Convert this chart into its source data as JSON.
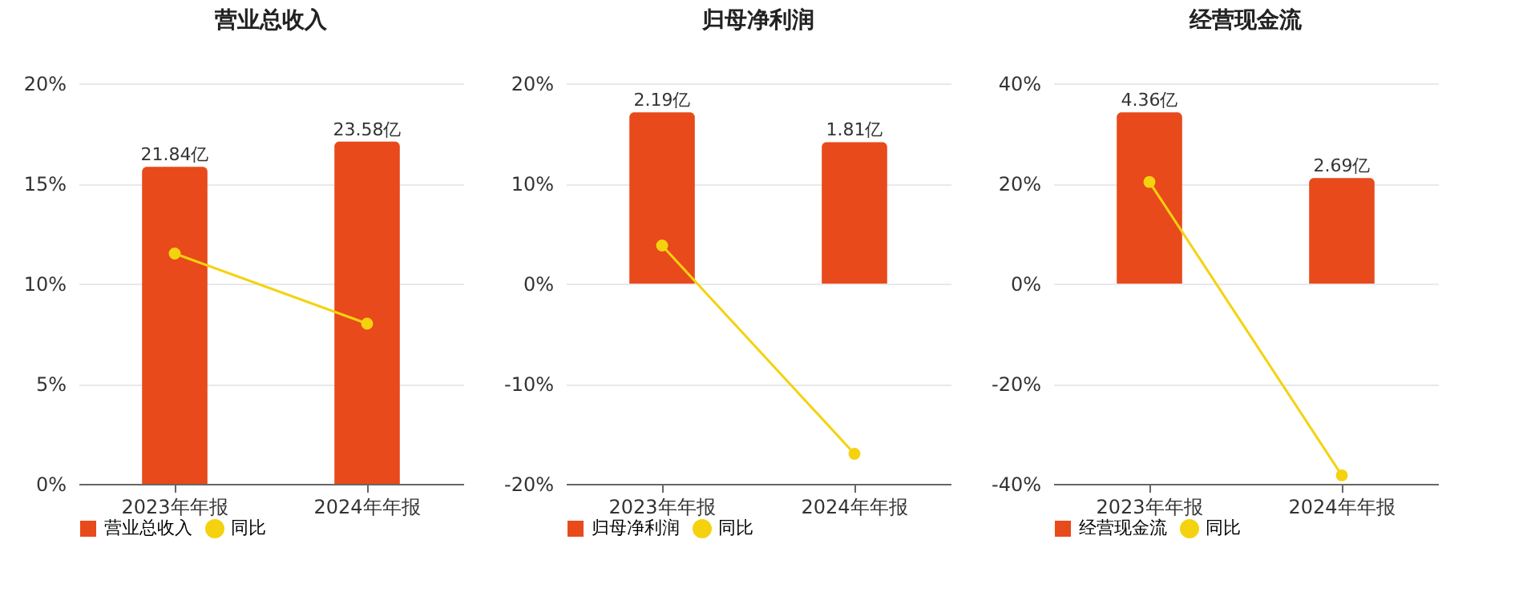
{
  "chart_data": [
    {
      "type": "bar",
      "title": "营业总收入",
      "categories": [
        "2023年年报",
        "2024年年报"
      ],
      "series": [
        {
          "name": "营业总收入",
          "axis": "y2",
          "color": "#e84a1b",
          "values": [
            21.84,
            23.58
          ],
          "value_labels": [
            "21.84亿",
            "23.58亿"
          ]
        },
        {
          "name": "同比",
          "type": "line",
          "color": "#f5d20f",
          "values": [
            11.5,
            8.0
          ]
        }
      ],
      "ylim": [
        0,
        20
      ],
      "yticks": [
        {
          "value": 0,
          "label": "0%"
        },
        {
          "value": 5,
          "label": "5%"
        },
        {
          "value": 10,
          "label": "10%"
        },
        {
          "value": 15,
          "label": "15%"
        },
        {
          "value": 20,
          "label": "20%"
        }
      ],
      "grid": "y",
      "legend": "bottom",
      "marker": "circle"
    },
    {
      "type": "bar",
      "title": "归母净利润",
      "categories": [
        "2023年年报",
        "2024年年报"
      ],
      "series": [
        {
          "name": "归母净利润",
          "axis": "y2",
          "color": "#e84a1b",
          "values": [
            2.19,
            1.81
          ],
          "value_labels": [
            "2.19亿",
            "1.81亿"
          ]
        },
        {
          "name": "同比",
          "type": "line",
          "color": "#f5d20f",
          "values": [
            3.8,
            -17.0
          ]
        }
      ],
      "ylim": [
        -20,
        20
      ],
      "yticks": [
        {
          "value": -20,
          "label": "-20%"
        },
        {
          "value": -10,
          "label": "-10%"
        },
        {
          "value": 0,
          "label": "0%"
        },
        {
          "value": 10,
          "label": "10%"
        },
        {
          "value": 20,
          "label": "20%"
        }
      ],
      "grid": "y",
      "legend": "bottom",
      "marker": "circle"
    },
    {
      "type": "bar",
      "title": "经营现金流",
      "categories": [
        "2023年年报",
        "2024年年报"
      ],
      "series": [
        {
          "name": "经营现金流",
          "axis": "y2",
          "color": "#e84a1b",
          "values": [
            4.36,
            2.69
          ],
          "value_labels": [
            "4.36亿",
            "2.69亿"
          ]
        },
        {
          "name": "同比",
          "type": "line",
          "color": "#f5d20f",
          "values": [
            20.3,
            -38.3
          ]
        }
      ],
      "ylim": [
        -40,
        40
      ],
      "yticks": [
        {
          "value": -40,
          "label": "-40%"
        },
        {
          "value": -20,
          "label": "-20%"
        },
        {
          "value": 0,
          "label": "0%"
        },
        {
          "value": 20,
          "label": "20%"
        },
        {
          "value": 40,
          "label": "40%"
        }
      ],
      "grid": "y",
      "legend": "bottom",
      "marker": "circle"
    }
  ]
}
